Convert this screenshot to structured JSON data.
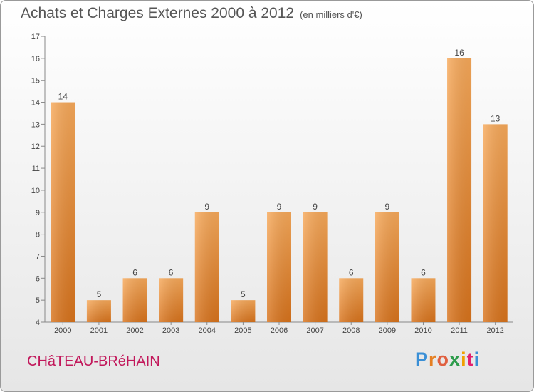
{
  "header": {
    "title": "Achats et Charges Externes 2000 à 2012",
    "unit": "(en milliers d'€)"
  },
  "footer": {
    "commune": "CHâTEAU-BRéHAIN",
    "logo": [
      "P",
      "r",
      "o",
      "x",
      "i",
      "t",
      "i"
    ]
  },
  "colors": {
    "bar_light": "#f7a95a",
    "bar_dark": "#d8731c",
    "commune_text": "#c2185b"
  },
  "chart_data": {
    "type": "bar",
    "title": "Achats et Charges Externes 2000 à 2012",
    "xlabel": "",
    "ylabel": "",
    "categories": [
      "2000",
      "2001",
      "2002",
      "2003",
      "2004",
      "2005",
      "2006",
      "2007",
      "2008",
      "2009",
      "2010",
      "2011",
      "2012"
    ],
    "values": [
      14,
      5,
      6,
      6,
      9,
      5,
      9,
      9,
      6,
      9,
      6,
      16,
      13
    ],
    "ylim": [
      4,
      17
    ],
    "yticks": [
      4,
      5,
      6,
      7,
      8,
      9,
      10,
      11,
      12,
      13,
      14,
      15,
      16,
      17
    ],
    "grid": false,
    "legend": "none"
  }
}
